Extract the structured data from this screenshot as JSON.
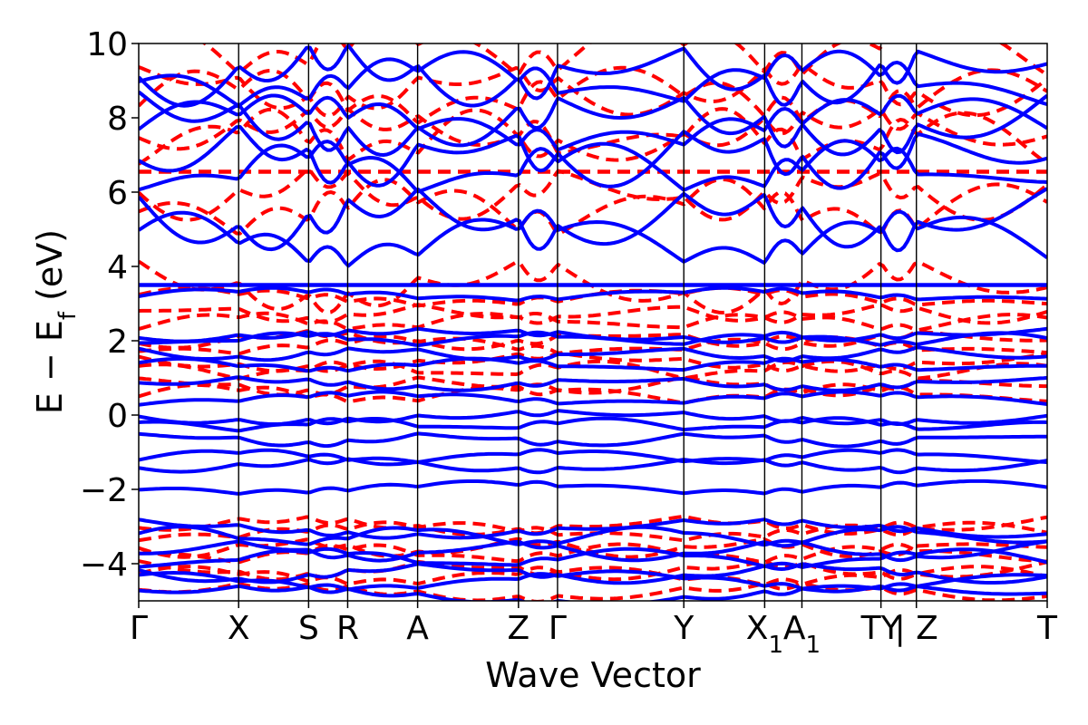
{
  "chart_data": {
    "type": "line",
    "title": "",
    "xlabel": "Wave Vector",
    "ylabel": "E − E",
    "ylabel_subscript": "f",
    "ylabel_unit": " (eV)",
    "ylim": [
      -5,
      10
    ],
    "y_ticks": [
      -4,
      -2,
      0,
      2,
      4,
      6,
      8,
      10
    ],
    "x_range": [
      0,
      10
    ],
    "kpoints": [
      {
        "pos": 0.0,
        "label": "Γ"
      },
      {
        "pos": 1.1,
        "label": "X"
      },
      {
        "pos": 1.87,
        "label": "S"
      },
      {
        "pos": 2.3,
        "label": "R"
      },
      {
        "pos": 3.07,
        "label": "A"
      },
      {
        "pos": 4.18,
        "label": "Z"
      },
      {
        "pos": 4.61,
        "label": "Γ"
      },
      {
        "pos": 6.0,
        "label": "Y"
      },
      {
        "pos": 6.89,
        "label": "X",
        "sub": "1"
      },
      {
        "pos": 7.3,
        "label": "A",
        "sub": "1"
      },
      {
        "pos": 8.17,
        "label": "TY"
      },
      {
        "pos": 8.56,
        "label": "| Z"
      },
      {
        "pos": 10.0,
        "label": "T"
      }
    ],
    "series": [
      {
        "name": "blue-solid",
        "color": "#0000ff",
        "dash": "solid",
        "flat_bands": [
          3.5
        ]
      },
      {
        "name": "red-dashed",
        "color": "#ff0000",
        "dash": "dashed",
        "flat_bands": [
          6.55
        ]
      }
    ]
  }
}
